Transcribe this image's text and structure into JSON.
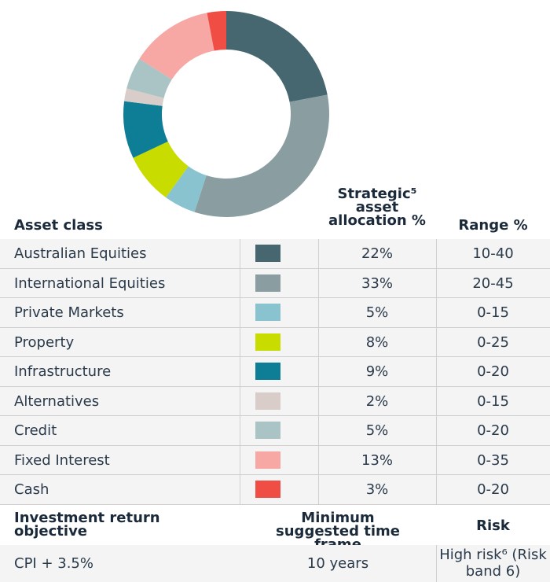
{
  "chart_data": {
    "type": "pie",
    "categories": [
      "Australian Equities",
      "International Equities",
      "Private Markets",
      "Property",
      "Infrastructure",
      "Alternatives",
      "Credit",
      "Fixed Interest",
      "Cash"
    ],
    "values": [
      22,
      33,
      5,
      8,
      9,
      2,
      5,
      13,
      3
    ],
    "value_labels": [
      "22%",
      "33%",
      "5%",
      "8%",
      "9%",
      "2%",
      "5%",
      "13%",
      "3%"
    ],
    "colors": [
      "#466670",
      "#8a9ea2",
      "#88c3cf",
      "#c8dc00",
      "#0e7e96",
      "#d8cdc8",
      "#aac3c5",
      "#f7a7a4",
      "#f04e45"
    ]
  },
  "table": {
    "headers": [
      "Asset class",
      "Strategic⁵ asset allocation %",
      "Range %"
    ],
    "ranges": [
      "10-40",
      "20-45",
      "0-15",
      "0-25",
      "0-20",
      "0-15",
      "0-20",
      "0-35",
      "0-20"
    ]
  },
  "footer": {
    "headers": [
      "Investment return objective",
      "Minimum suggested time frame",
      "Risk"
    ],
    "values": [
      "CPI + 3.5%",
      "10 years",
      "High risk⁶ (Risk band 6)"
    ]
  }
}
